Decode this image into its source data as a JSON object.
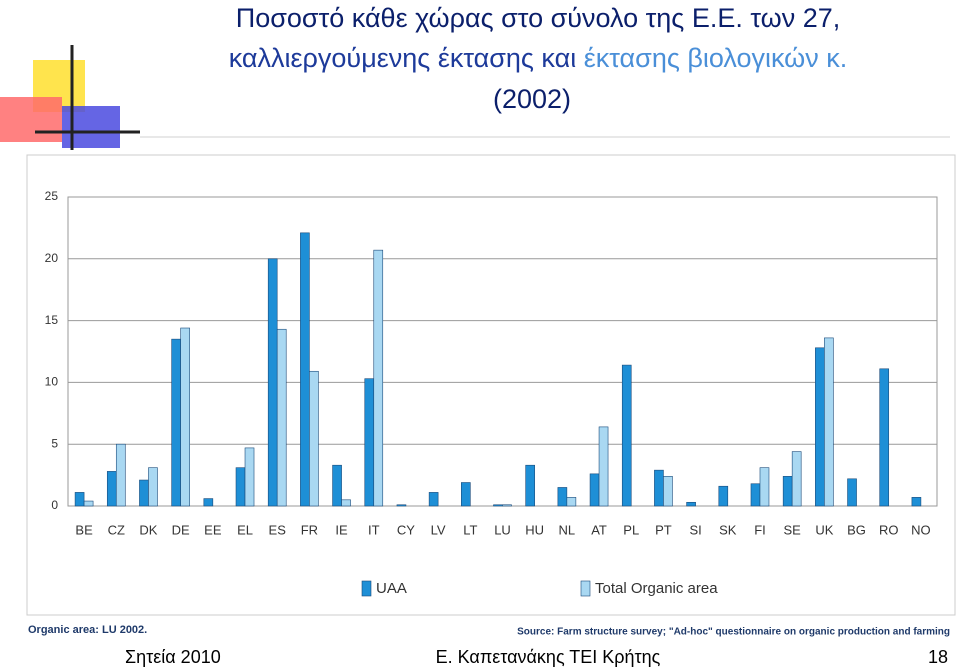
{
  "slide": {
    "title_line1": "Ποσοστό κάθε χώρας στο σύνολο της Ε.Ε. των 27,",
    "title_line2a": "καλλιεργούμενης έκτασης και",
    "title_line2b": "έκτασης βιολογικών κ.",
    "title_line3": "(2002)",
    "note_left": "Organic area: LU 2002.",
    "note_source": "Source: Farm structure survey; \"Ad-hoc\" questionnaire on organic production and farming",
    "footer_left": "Σητεία 2010",
    "footer_center": "Ε. Καπετανάκης ΤΕΙ Κρήτης",
    "footer_right": "18"
  },
  "chart_data": {
    "type": "bar",
    "categories": [
      "BE",
      "CZ",
      "DK",
      "DE",
      "EE",
      "EL",
      "ES",
      "FR",
      "IE",
      "IT",
      "CY",
      "LV",
      "LT",
      "LU",
      "HU",
      "NL",
      "AT",
      "PL",
      "PT",
      "SI",
      "SK",
      "FI",
      "SE",
      "UK",
      "BG",
      "RO",
      "NO"
    ],
    "series": [
      {
        "name": "UAA",
        "color": "#1e8fd6",
        "values": [
          1.1,
          2.8,
          2.1,
          13.5,
          0.6,
          3.1,
          20,
          22.1,
          3.3,
          10.3,
          0.1,
          1.1,
          1.9,
          0.1,
          3.3,
          1.5,
          2.6,
          11.4,
          2.9,
          0.3,
          1.6,
          1.8,
          2.4,
          12.8,
          2.2,
          11.1,
          0.7
        ]
      },
      {
        "name": "Total Organic area",
        "color": "#a9d8f2",
        "values": [
          0.4,
          5.0,
          3.1,
          14.4,
          null,
          4.7,
          14.3,
          10.9,
          0.5,
          20.7,
          null,
          null,
          null,
          0.1,
          null,
          0.7,
          6.4,
          null,
          2.4,
          null,
          null,
          3.1,
          4.4,
          13.6,
          null,
          null,
          null
        ]
      }
    ],
    "ylim": [
      0,
      25
    ],
    "yticks": [
      0,
      5,
      10,
      15,
      20,
      25
    ],
    "grid": true,
    "legend": "bottom"
  }
}
